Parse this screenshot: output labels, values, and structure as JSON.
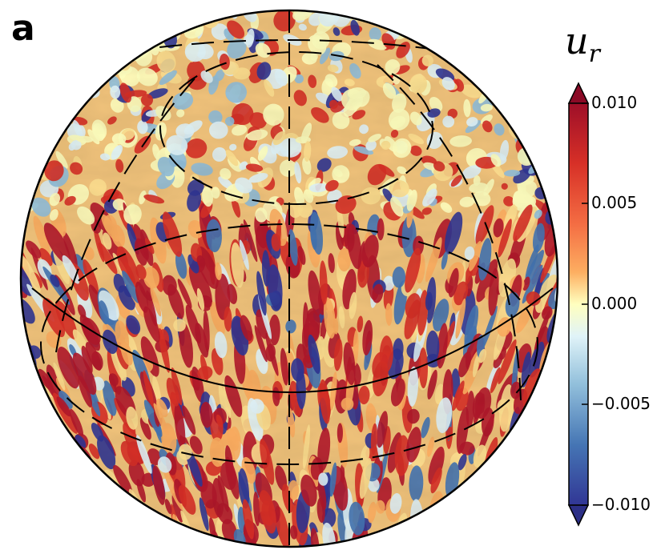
{
  "panel": {
    "label": "a"
  },
  "colorbar": {
    "variable": "u",
    "subscript": "r",
    "ticks": [
      "0.010",
      "0.005",
      "0.000",
      "−0.005",
      "−0.010"
    ],
    "colors": [
      "#b2182b",
      "#ef8a62",
      "#fddbc7",
      "#fdfdc8",
      "#d1e5f0",
      "#67a9cf",
      "#2166ac"
    ],
    "extend": "both"
  },
  "sphere": {
    "field_colors": [
      "#b2182b",
      "#d73027",
      "#f46d43",
      "#fdae61",
      "#fee090",
      "#ffffbf",
      "#e0f3f8",
      "#91bfdb",
      "#4575b4",
      "#313695"
    ],
    "grid_lines": "dashed black meridians and latitude circles"
  }
}
